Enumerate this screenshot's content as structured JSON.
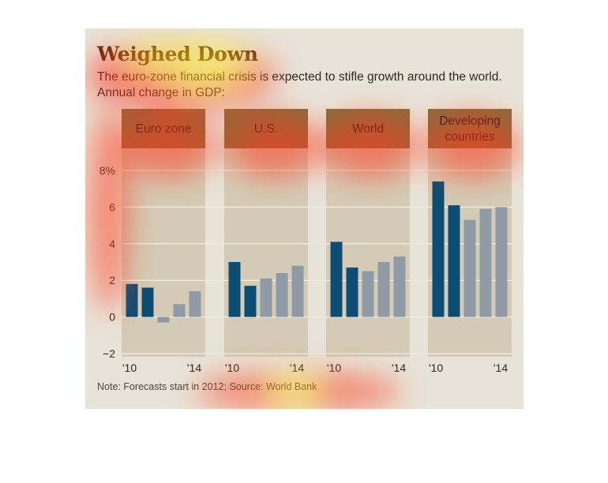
{
  "header": {
    "title": "Weighed Down",
    "subtitle": "The euro-zone financial crisis is expected to stifle growth around the world. Annual change in GDP:",
    "note": "Note: Forecasts start in 2012; Source: World Bank"
  },
  "colors": {
    "actual": "#0d4d73",
    "forecast": "#8e9aa6",
    "header_band": "#8d6a3c",
    "panel": "#d4cbb6",
    "background": "#e8e3d7"
  },
  "chart_data": {
    "type": "bar",
    "ylabel": "",
    "ylim": [
      -2,
      8
    ],
    "yticks": [
      "8%",
      "6",
      "4",
      "2",
      "0",
      "−2"
    ],
    "ytick_values": [
      8,
      6,
      4,
      2,
      0,
      -2
    ],
    "x_tick_labels": [
      "'10",
      "'14"
    ],
    "forecast_start": "2012",
    "panels": [
      {
        "name": "Euro zone",
        "name_lines": [
          "Euro zone"
        ],
        "categories": [
          "2010",
          "2011",
          "2012",
          "2013",
          "2014"
        ],
        "values": [
          1.8,
          1.6,
          -0.3,
          0.7,
          1.4
        ],
        "forecast": [
          false,
          false,
          true,
          true,
          true
        ]
      },
      {
        "name": "U.S.",
        "name_lines": [
          "U.S."
        ],
        "categories": [
          "2010",
          "2011",
          "2012",
          "2013",
          "2014"
        ],
        "values": [
          3.0,
          1.7,
          2.1,
          2.4,
          2.8
        ],
        "forecast": [
          false,
          false,
          true,
          true,
          true
        ]
      },
      {
        "name": "World",
        "name_lines": [
          "World"
        ],
        "categories": [
          "2010",
          "2011",
          "2012",
          "2013",
          "2014"
        ],
        "values": [
          4.1,
          2.7,
          2.5,
          3.0,
          3.3
        ],
        "forecast": [
          false,
          false,
          true,
          true,
          true
        ]
      },
      {
        "name": "Developing countries",
        "name_lines": [
          "Developing",
          "countries"
        ],
        "categories": [
          "2010",
          "2011",
          "2012",
          "2013",
          "2014"
        ],
        "values": [
          7.4,
          6.1,
          5.3,
          5.9,
          6.0
        ],
        "forecast": [
          false,
          false,
          true,
          true,
          true
        ]
      }
    ]
  }
}
